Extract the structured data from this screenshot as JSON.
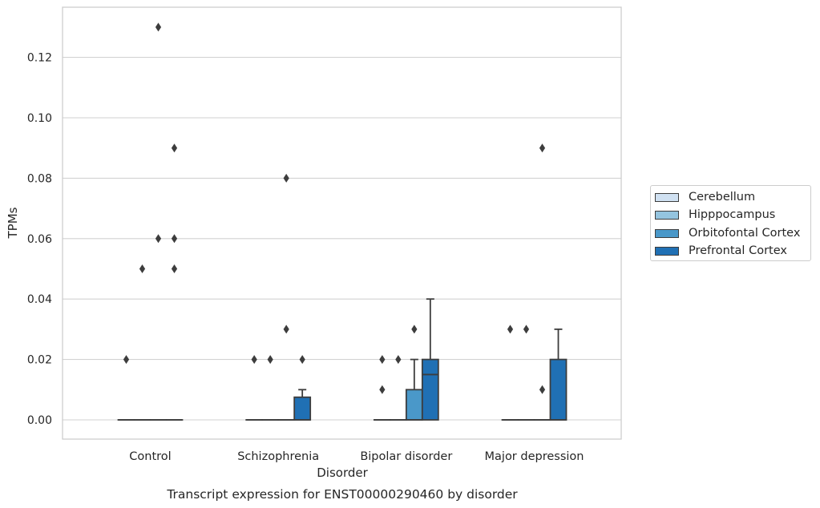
{
  "chart_data": {
    "type": "box",
    "title": "Transcript expression for ENST00000290460 by disorder",
    "xlabel": "Disorder",
    "ylabel": "TPMs",
    "ylim": [
      -0.0064,
      0.1365
    ],
    "yticks": [
      0.0,
      0.02,
      0.04,
      0.06,
      0.08,
      0.1,
      0.12
    ],
    "ytick_labels": [
      "0.00",
      "0.02",
      "0.04",
      "0.06",
      "0.08",
      "0.10",
      "0.12"
    ],
    "grid": true,
    "legend_position": "right",
    "categories": [
      "Control",
      "Schizophrenia",
      "Bipolar disorder",
      "Major depression"
    ],
    "series": [
      {
        "name": "Cerebellum",
        "color": "#d0e1f2",
        "boxes": [
          {
            "q1": 0,
            "median": 0,
            "q3": 0,
            "whisker_low": 0,
            "whisker_high": 0,
            "outliers": [
              0.02
            ]
          },
          {
            "q1": 0,
            "median": 0,
            "q3": 0,
            "whisker_low": 0,
            "whisker_high": 0,
            "outliers": [
              0.02
            ]
          },
          {
            "q1": 0,
            "median": 0,
            "q3": 0,
            "whisker_low": 0,
            "whisker_high": 0,
            "outliers": [
              0.02,
              0.01
            ]
          },
          {
            "q1": 0,
            "median": 0,
            "q3": 0,
            "whisker_low": 0,
            "whisker_high": 0,
            "outliers": [
              0.03
            ]
          }
        ]
      },
      {
        "name": "Hipppocampus",
        "color": "#94c4df",
        "boxes": [
          {
            "q1": 0,
            "median": 0,
            "q3": 0,
            "whisker_low": 0,
            "whisker_high": 0,
            "outliers": [
              0.05
            ]
          },
          {
            "q1": 0,
            "median": 0,
            "q3": 0,
            "whisker_low": 0,
            "whisker_high": 0,
            "outliers": [
              0.02
            ]
          },
          {
            "q1": 0,
            "median": 0,
            "q3": 0,
            "whisker_low": 0,
            "whisker_high": 0,
            "outliers": [
              0.02
            ]
          },
          {
            "q1": 0,
            "median": 0,
            "q3": 0,
            "whisker_low": 0,
            "whisker_high": 0,
            "outliers": [
              0.03
            ]
          }
        ]
      },
      {
        "name": "Orbitofontal Cortex",
        "color": "#4a98c9",
        "boxes": [
          {
            "q1": 0,
            "median": 0,
            "q3": 0,
            "whisker_low": 0,
            "whisker_high": 0,
            "outliers": [
              0.13,
              0.06
            ]
          },
          {
            "q1": 0,
            "median": 0,
            "q3": 0,
            "whisker_low": 0,
            "whisker_high": 0,
            "outliers": [
              0.08,
              0.03
            ]
          },
          {
            "q1": 0,
            "median": 0,
            "q3": 0.01,
            "whisker_low": 0,
            "whisker_high": 0.02,
            "outliers": [
              0.03
            ]
          },
          {
            "q1": 0,
            "median": 0,
            "q3": 0,
            "whisker_low": 0,
            "whisker_high": 0,
            "outliers": [
              0.09,
              0.01
            ]
          }
        ]
      },
      {
        "name": "Prefrontal Cortex",
        "color": "#2070b4",
        "boxes": [
          {
            "q1": 0,
            "median": 0,
            "q3": 0,
            "whisker_low": 0,
            "whisker_high": 0,
            "outliers": [
              0.09,
              0.06,
              0.05
            ]
          },
          {
            "q1": 0,
            "median": 0,
            "q3": 0.0075,
            "whisker_low": 0,
            "whisker_high": 0.01,
            "outliers": [
              0.02
            ]
          },
          {
            "q1": 0,
            "median": 0.015,
            "q3": 0.02,
            "whisker_low": 0,
            "whisker_high": 0.04,
            "outliers": []
          },
          {
            "q1": 0,
            "median": 0,
            "q3": 0.02,
            "whisker_low": 0,
            "whisker_high": 0.03,
            "outliers": []
          }
        ]
      }
    ]
  }
}
